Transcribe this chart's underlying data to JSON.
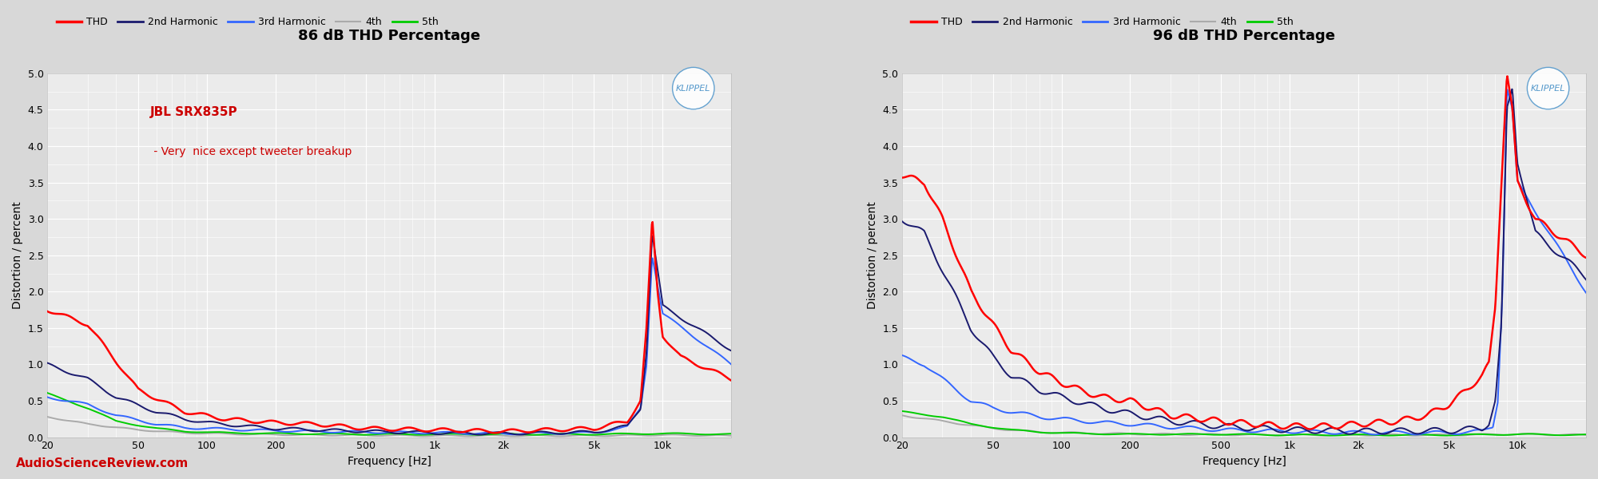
{
  "title_left": "86 dB THD Percentage",
  "title_right": "96 dB THD Percentage",
  "ylabel": "Distortion / percent",
  "xlabel": "Frequency [Hz]",
  "ylim": [
    0,
    5.0
  ],
  "yticks": [
    0,
    0.5,
    1.0,
    1.5,
    2.0,
    2.5,
    3.0,
    3.5,
    4.0,
    4.5,
    5.0
  ],
  "annotation_line1": "JBL SRX835P",
  "annotation_line2": " - Very  nice except tweeter breakup",
  "annotation_color": "#cc0000",
  "watermark": "AudioScienceReview.com",
  "watermark_color": "#cc0000",
  "klippel_color": "#5599cc",
  "background_color": "#ebebeb",
  "grid_color": "#ffffff",
  "legend_entries": [
    "THD",
    "2nd Harmonic",
    "3rd Harmonic",
    "4th",
    "5th"
  ],
  "thd_color": "#ff0000",
  "h2_color": "#1a1a6e",
  "h3_color": "#3366ff",
  "h4_color": "#aaaaaa",
  "h5_color": "#00cc00"
}
